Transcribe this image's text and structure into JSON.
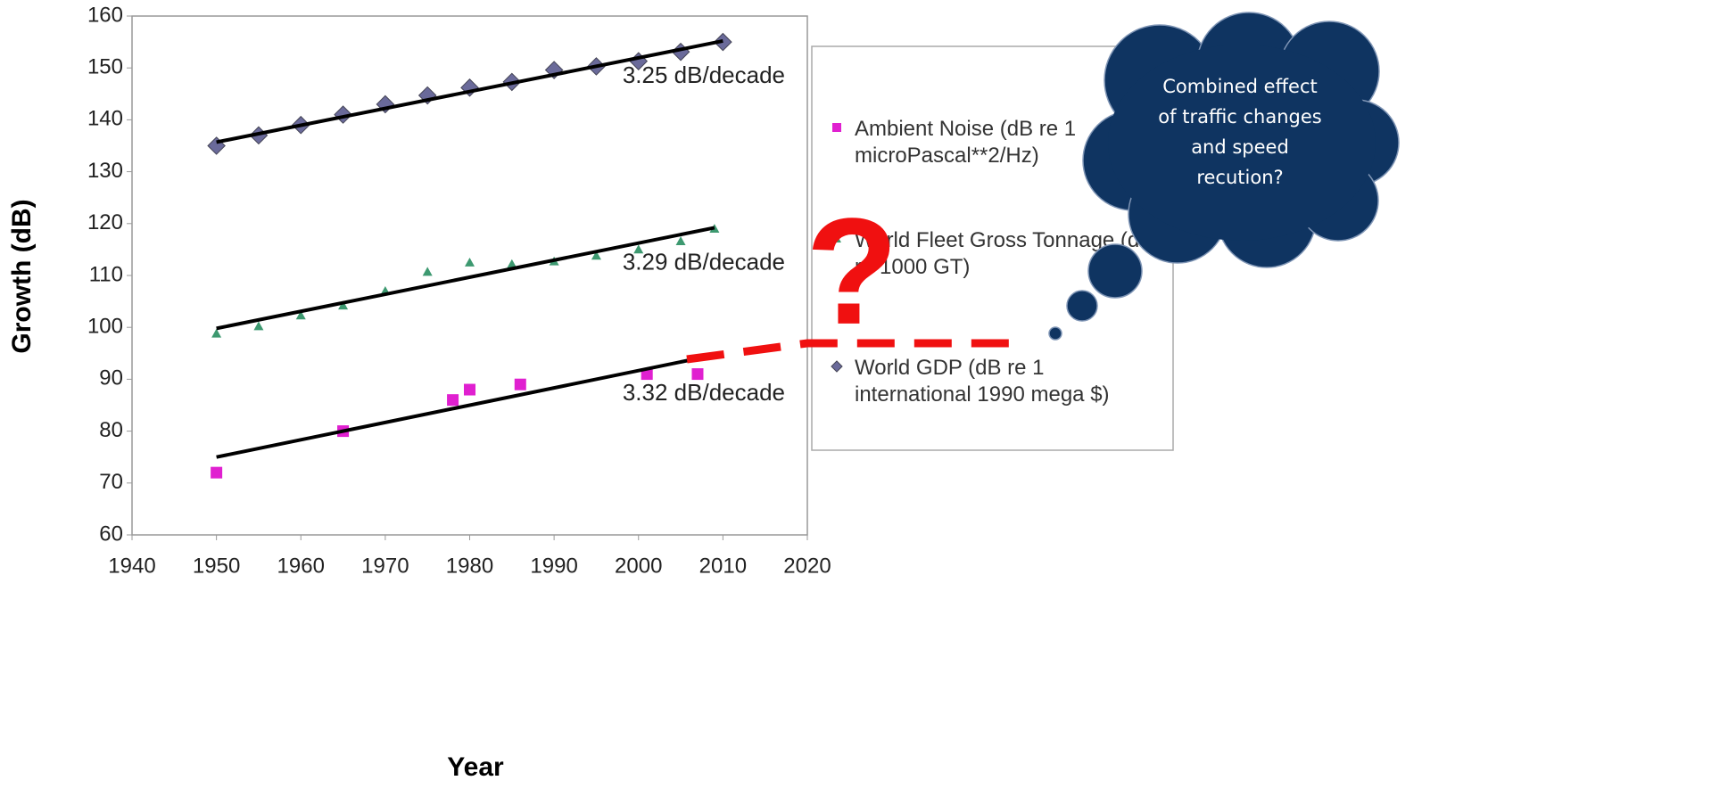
{
  "chart_data": {
    "type": "scatter",
    "x_label": "Year",
    "y_label": "Growth (dB)",
    "xlim": [
      1940,
      2020
    ],
    "xticks": [
      1940,
      1950,
      1960,
      1970,
      1980,
      1990,
      2000,
      2010,
      2020
    ],
    "ylim": [
      60,
      160
    ],
    "yticks": [
      60,
      70,
      80,
      90,
      100,
      110,
      120,
      130,
      140,
      150,
      160
    ],
    "grid": false,
    "legend": "right",
    "series": [
      {
        "name": "Ambient Noise (dB re 1 microPascal**2/Hz)",
        "color": "#e020d0",
        "marker": "square",
        "x": [
          1950,
          1965,
          1978,
          1980,
          1986,
          2001,
          2007
        ],
        "values": [
          72,
          80,
          86,
          88,
          89,
          91,
          91
        ],
        "trend": {
          "x": [
            1950,
            2007
          ],
          "values": [
            75,
            94
          ],
          "label": "3.32 dB/decade"
        }
      },
      {
        "name": "World Fleet Gross Tonnage (dB re 1000 GT)",
        "color": "#3d9970",
        "marker": "triangle",
        "x": [
          1950,
          1955,
          1960,
          1965,
          1970,
          1975,
          1980,
          1985,
          1990,
          1995,
          2000,
          2005,
          2009
        ],
        "values": [
          98.8,
          100.2,
          102.3,
          104.2,
          107,
          110.7,
          112.5,
          112.2,
          112.7,
          113.8,
          115,
          116.6,
          119
        ],
        "trend": {
          "x": [
            1950,
            2009
          ],
          "values": [
            99.8,
            119.2
          ],
          "label": "3.29 dB/decade"
        }
      },
      {
        "name": "World GDP (dB re 1 international 1990 mega $)",
        "color": "#6a6a9a",
        "marker": "diamond",
        "x": [
          1950,
          1955,
          1960,
          1965,
          1970,
          1975,
          1980,
          1985,
          1990,
          1995,
          2000,
          2005,
          2010
        ],
        "values": [
          135,
          137,
          139,
          141,
          143,
          144.7,
          146.2,
          147.3,
          149.6,
          150.3,
          151.3,
          153.1,
          155
        ],
        "trend": {
          "x": [
            1950,
            2010
          ],
          "values": [
            135.7,
            155.2
          ],
          "label": "3.25 dB/decade"
        }
      }
    ]
  },
  "annotations": {
    "question": "?",
    "thought": "Combined effect of traffic changes and speed recution?"
  }
}
